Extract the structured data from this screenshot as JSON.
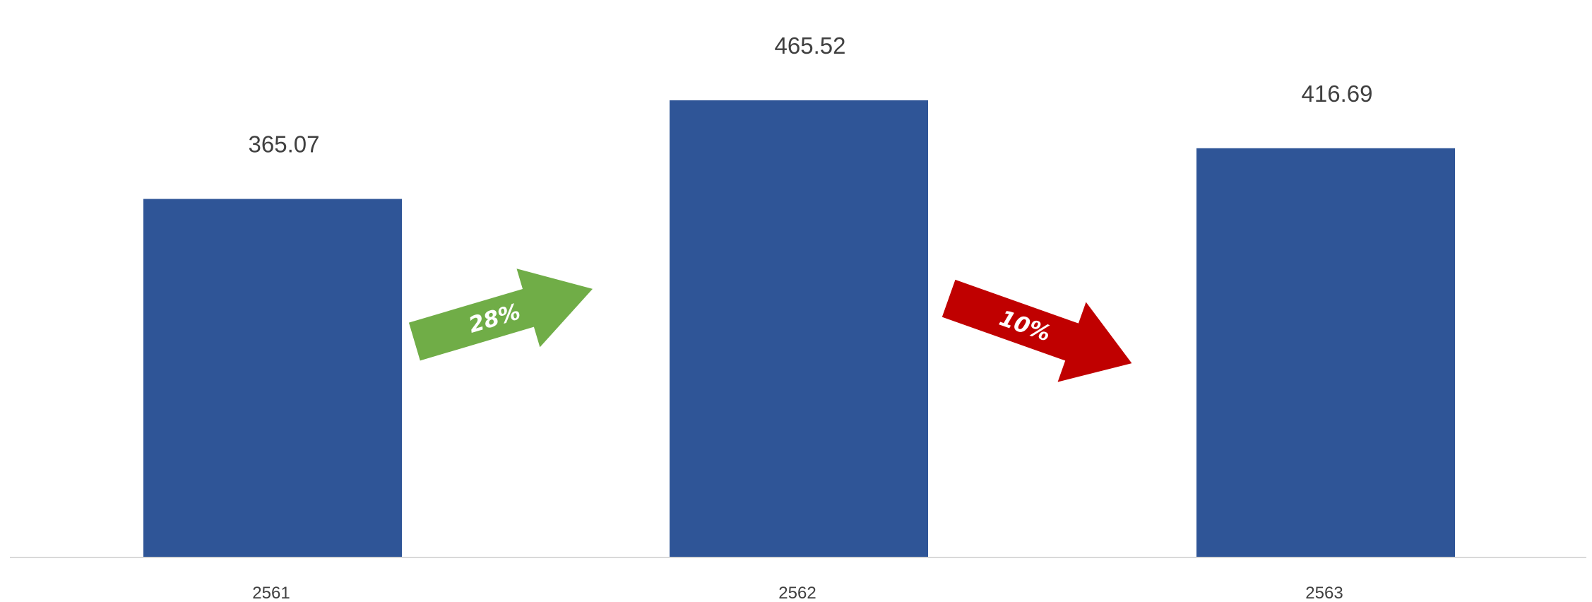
{
  "chart_data": {
    "type": "bar",
    "categories": [
      "2561",
      "2562",
      "2563"
    ],
    "values": [
      365.07,
      465.52,
      416.69
    ],
    "value_labels": [
      "365.07",
      "465.52",
      "416.69"
    ],
    "ylim": [
      0,
      500
    ],
    "grid": false,
    "bar_color": "#2F5597",
    "annotations": [
      {
        "text": "28%",
        "direction": "up",
        "between": [
          "2561",
          "2562"
        ],
        "color": "#70AD47"
      },
      {
        "text": "10%",
        "direction": "down",
        "between": [
          "2562",
          "2563"
        ],
        "color": "#C00000"
      }
    ]
  }
}
